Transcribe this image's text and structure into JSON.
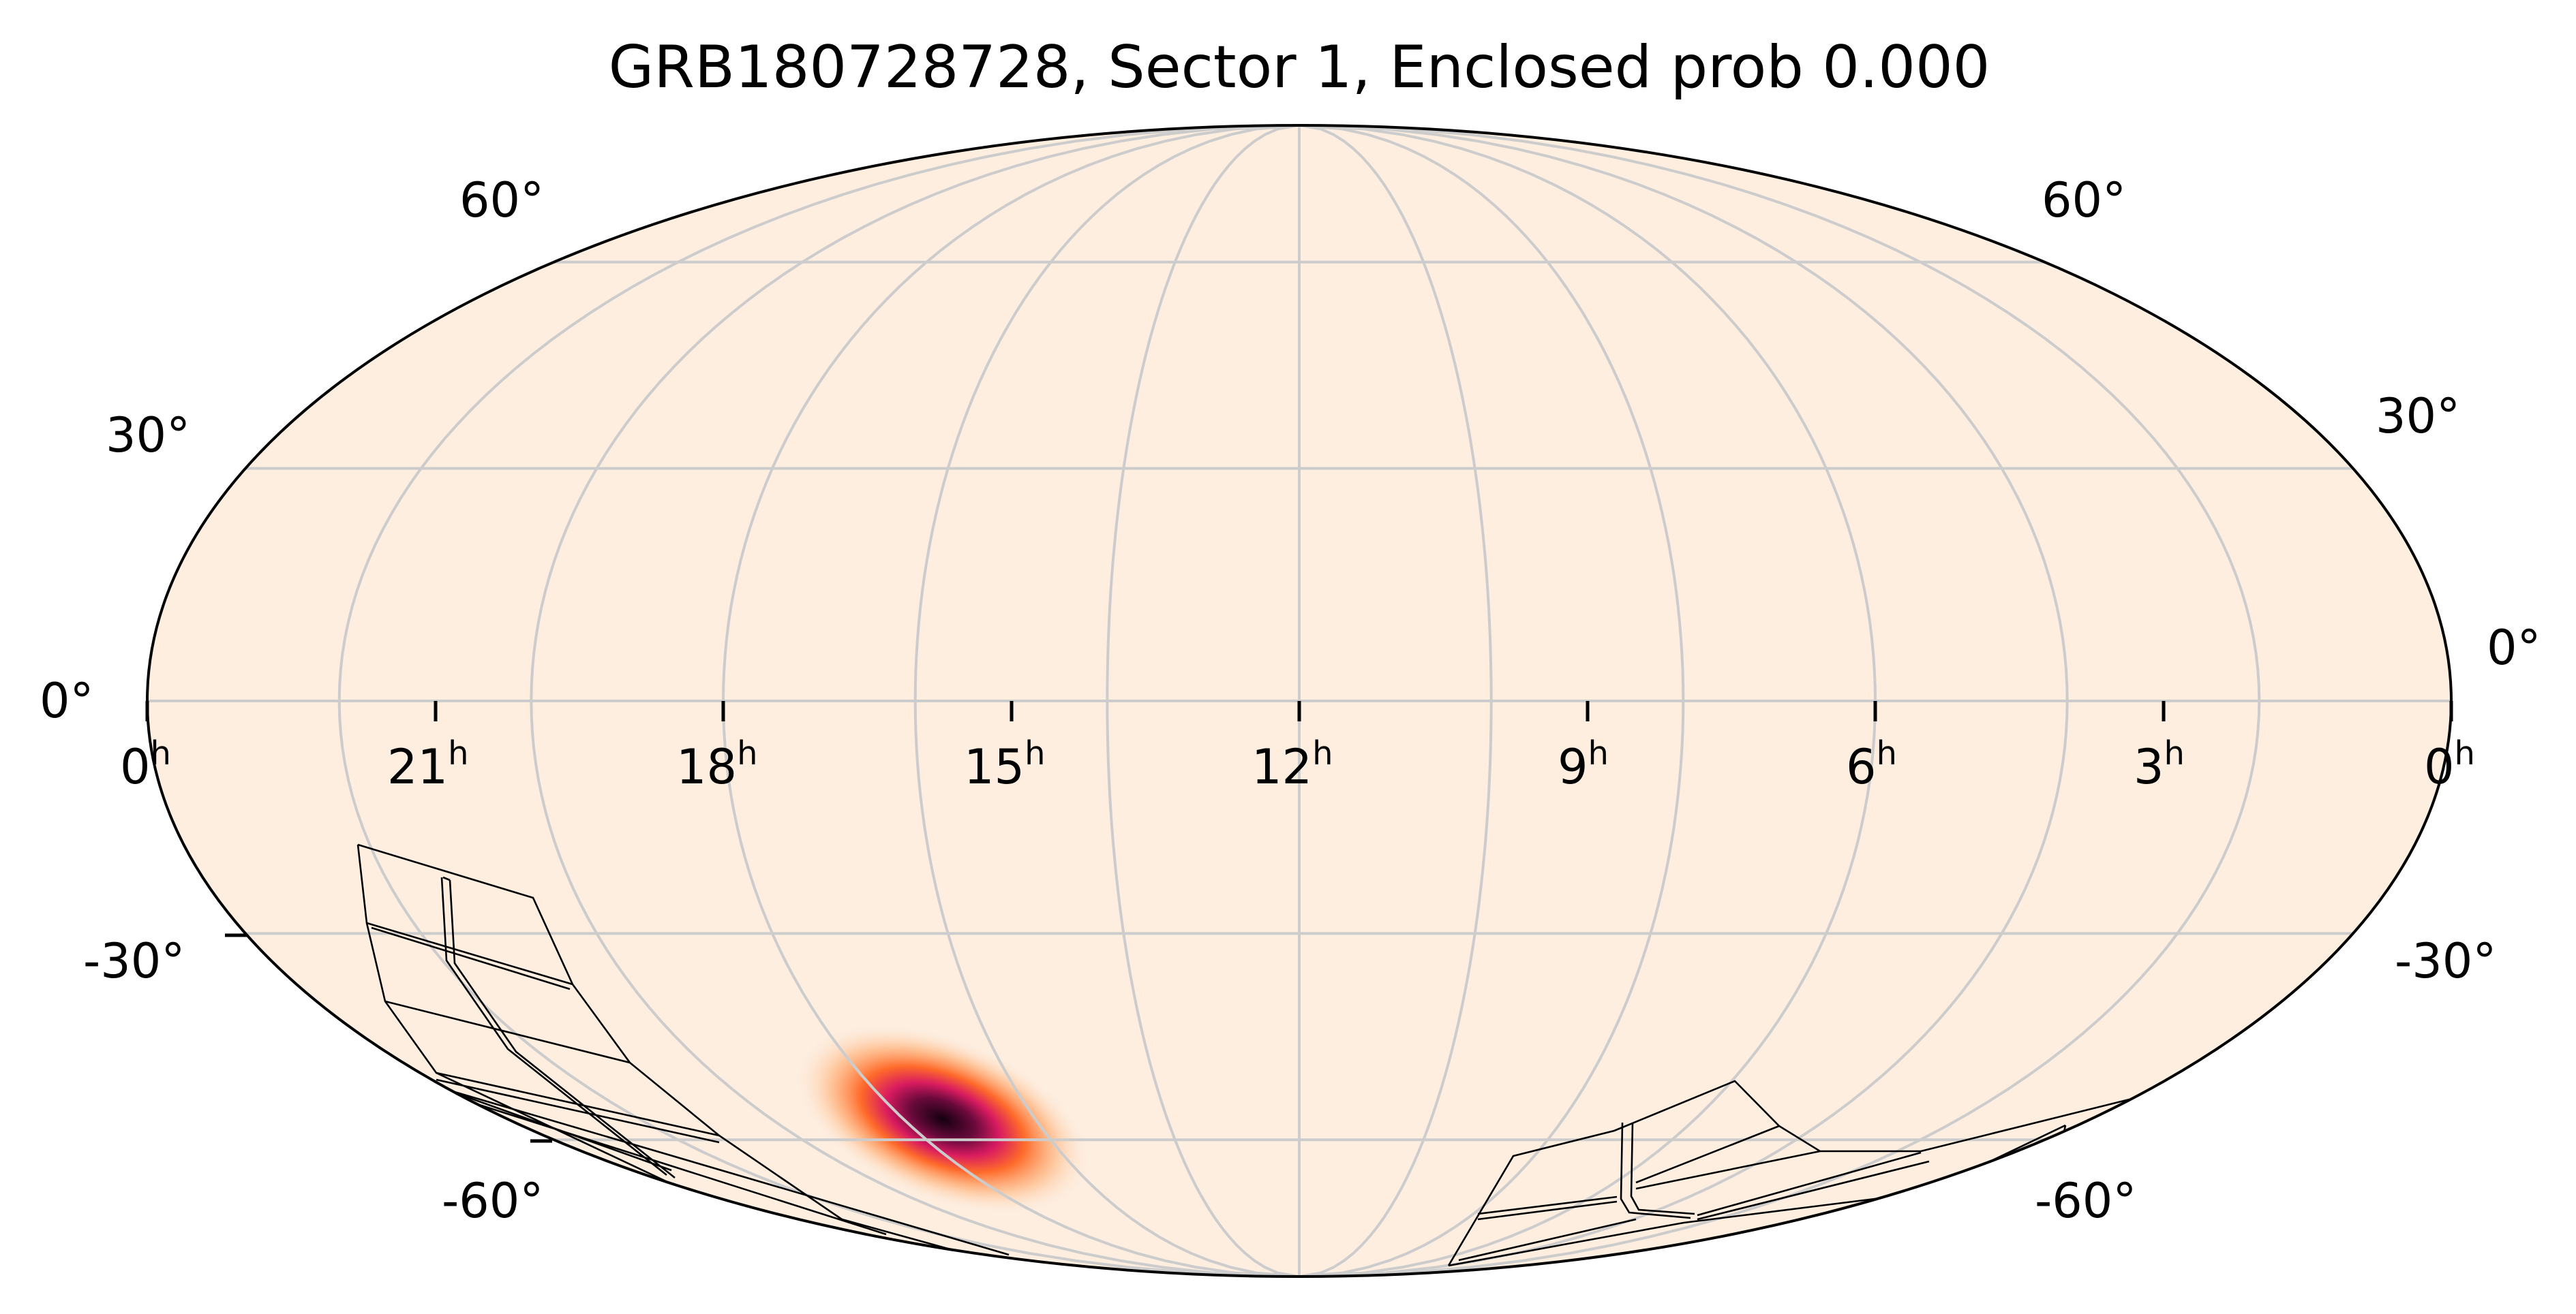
{
  "figure": {
    "title": "GRB180728728, Sector 1, Enclosed prob 0.000",
    "projection": "mollweide",
    "ra_labels": [
      {
        "hour": "0",
        "unit": "h"
      },
      {
        "hour": "21",
        "unit": "h"
      },
      {
        "hour": "18",
        "unit": "h"
      },
      {
        "hour": "15",
        "unit": "h"
      },
      {
        "hour": "12",
        "unit": "h"
      },
      {
        "hour": "9",
        "unit": "h"
      },
      {
        "hour": "6",
        "unit": "h"
      },
      {
        "hour": "3",
        "unit": "h"
      },
      {
        "hour": "0",
        "unit": "h"
      }
    ],
    "dec_labels_left": [
      "60°",
      "30°",
      "0°",
      "-30°",
      "-60°"
    ],
    "dec_labels_right": [
      "60°",
      "30°",
      "0°",
      "-30°",
      "-60°"
    ],
    "colors": {
      "map_background": "#fdeee0",
      "grid": "#cccccc",
      "outline": "#000000",
      "footprint": "#000000",
      "hotspot_core": "#1a0016",
      "hotspot_mid": "#d81b60",
      "hotspot_outer": "#ff8a3d"
    },
    "probability_hotspot": {
      "ra_hours": 16.0,
      "dec_deg": -50.0,
      "description_colormap": "magma-like"
    },
    "footprint_regions": [
      {
        "name": "left-ccd-array"
      },
      {
        "name": "right-ccd-array"
      }
    ]
  }
}
